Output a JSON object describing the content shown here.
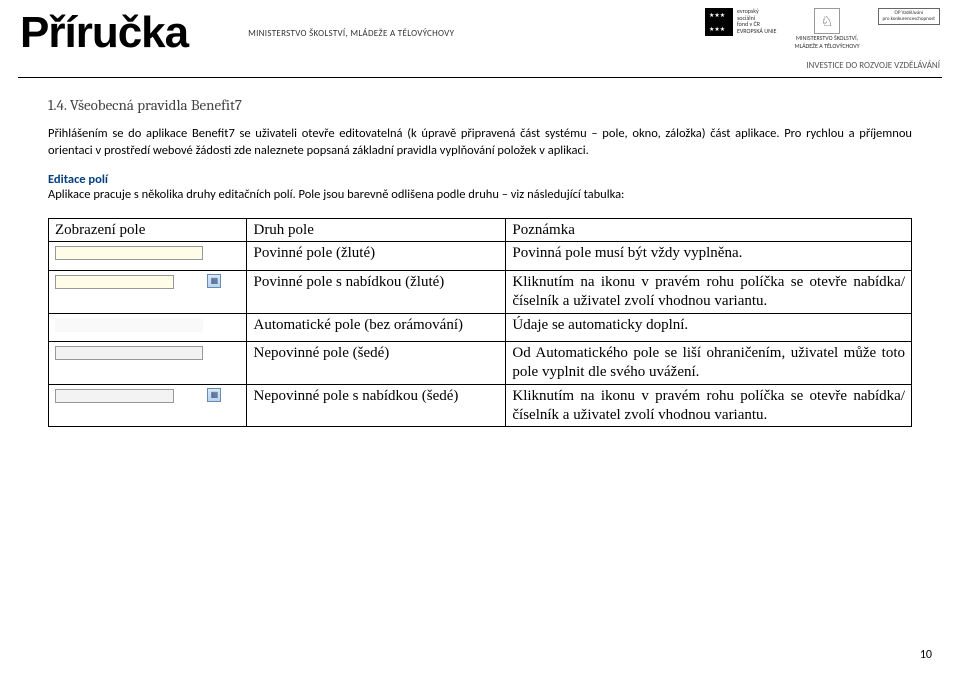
{
  "header": {
    "title": "Příručka",
    "ministry": "MINISTERSTVO ŠKOLSTVÍ, MLÁDEŽE A TĚLOVÝCHOVY",
    "esf_lines": [
      "evropský",
      "sociální",
      "fond v ČR"
    ],
    "eu_label": "EVROPSKÁ UNIE",
    "lion_label_top": "MINISTERSTVO ŠKOLSTVÍ,",
    "lion_label_bottom": "MLÁDEŽE A TĚLOVÝCHOVY",
    "op_label_top": "OP Vzdělávání",
    "op_label_bottom": "pro konkurenceschopnost",
    "tagline": "INVESTICE DO ROZVOJE VZDĚLÁVÁNÍ"
  },
  "section": {
    "heading": "1.4. Všeobecná pravidla Benefit7",
    "para1": "Přihlášením se do aplikace Benefit7 se uživateli otevře editovatelná (k úpravě připravená část systému – pole, okno, záložka) část aplikace. Pro rychlou a příjemnou orientaci v prostředí webové žádosti zde naleznete popsaná základní pravidla vyplňování položek v aplikaci.",
    "subhead": "Editace polí",
    "para2": "Aplikace pracuje s několika druhy editačních polí. Pole jsou barevně odlišena podle druhu – viz následující tabulka:"
  },
  "table": {
    "header": [
      "Zobrazení pole",
      "Druh pole",
      "Poznámka"
    ],
    "rows": [
      {
        "type": "Povinné pole (žluté)",
        "note": "Povinná pole musí být vždy vyplněna."
      },
      {
        "type": "Povinné pole s nabídkou (žluté)",
        "note": "Kliknutím na ikonu v pravém rohu políčka se otevře nabídka/číselník a uživatel zvolí vhodnou variantu."
      },
      {
        "type": "Automatické pole (bez orámování)",
        "note": "Údaje se automaticky doplní."
      },
      {
        "type": "Nepovinné pole (šedé)",
        "note": "Od Automatického pole se liší ohraničením, uživatel může toto pole vyplnit dle svého uvážení."
      },
      {
        "type": "Nepovinné pole s nabídkou (šedé)",
        "note": "Kliknutím na ikonu v pravém rohu políčka se otevře nabídka/číselník a uživatel zvolí vhodnou variantu."
      }
    ]
  },
  "page_number": "10",
  "colors": {
    "heading": "#444444",
    "subhead": "#003e7e",
    "eu_blue": "#003399",
    "eu_gold": "#ffcc00"
  }
}
